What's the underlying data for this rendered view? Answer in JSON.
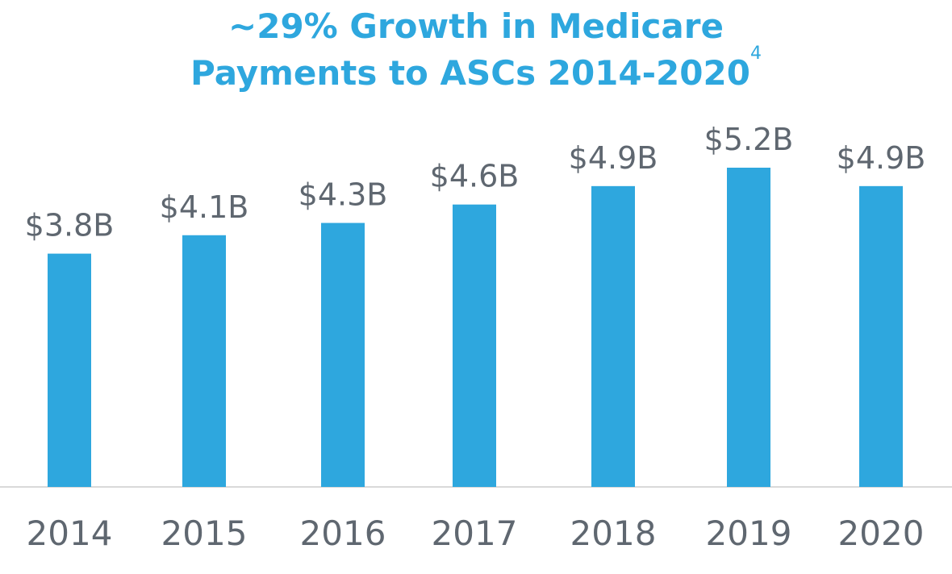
{
  "chart_data": {
    "type": "bar",
    "title_line1": "~29% Growth in Medicare",
    "title_line2": "Payments to ASCs 2014-2020",
    "title_footnote": "4",
    "categories": [
      "2014",
      "2015",
      "2016",
      "2017",
      "2018",
      "2019",
      "2020"
    ],
    "values": [
      3.8,
      4.1,
      4.3,
      4.6,
      4.9,
      5.2,
      4.9
    ],
    "value_labels": [
      "$3.8B",
      "$4.1B",
      "$4.3B",
      "$4.6B",
      "$4.9B",
      "$5.2B",
      "$4.9B"
    ],
    "units": "$B",
    "ylim": [
      0,
      5.2
    ],
    "grid": false,
    "legend": "none",
    "colors": {
      "bar": "#2ea7de",
      "title": "#2ea7de",
      "text": "#5f6770",
      "axis": "#d9d9d9"
    }
  }
}
